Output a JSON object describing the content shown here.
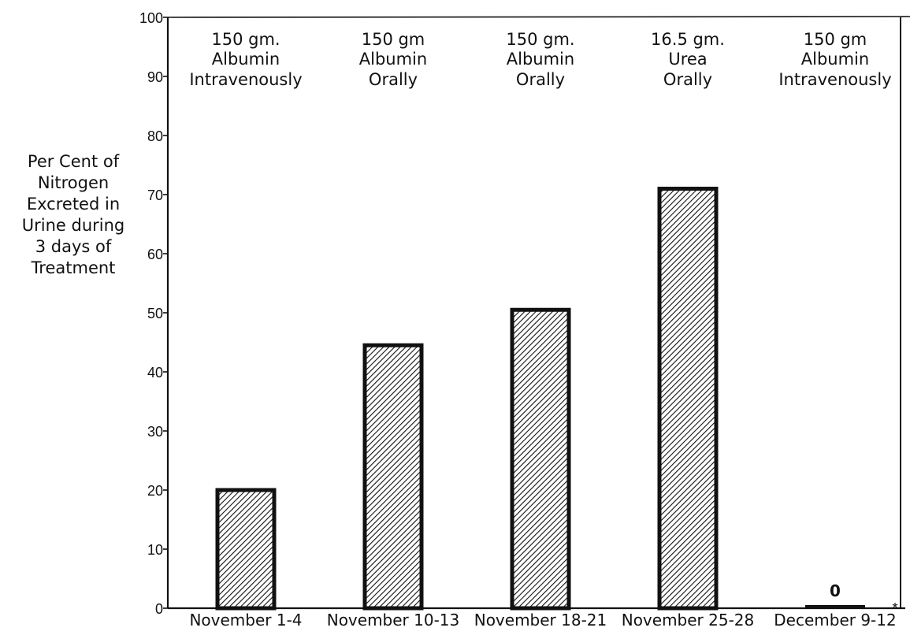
{
  "chart_data": {
    "type": "bar",
    "ylabel_lines": [
      "Per Cent of",
      "Nitrogen",
      "Excreted in",
      "Urine during",
      "3  days of",
      "Treatment"
    ],
    "xlabel": "",
    "ylim": [
      0,
      100
    ],
    "yticks": [
      "0",
      "10",
      "20",
      "30",
      "40",
      "50",
      "60",
      "70",
      "80",
      "90",
      "100"
    ],
    "categories": [
      "November 1-4",
      "November 10-13",
      "November 18-21",
      "November 25-28",
      "December 9-12"
    ],
    "values": [
      20,
      44.5,
      50.5,
      71,
      0
    ],
    "treatments": [
      [
        "150 gm.",
        "Albumin",
        "Intravenously"
      ],
      [
        "150 gm",
        "Albumin",
        "Orally"
      ],
      [
        "150 gm.",
        "Albumin",
        "Orally"
      ],
      [
        "16.5 gm.",
        "Urea",
        "Orally"
      ],
      [
        "150 gm",
        "Albumin",
        "Intravenously"
      ]
    ],
    "annotations": [
      {
        "category": "December 9-12",
        "text": "0"
      }
    ],
    "marker": "*",
    "grid": false,
    "legend": "none",
    "bar_fill": "hatched",
    "colors": {
      "bar_edge": "#111111",
      "hatch": "#111111",
      "axis": "#111111",
      "background": "#ffffff"
    }
  }
}
